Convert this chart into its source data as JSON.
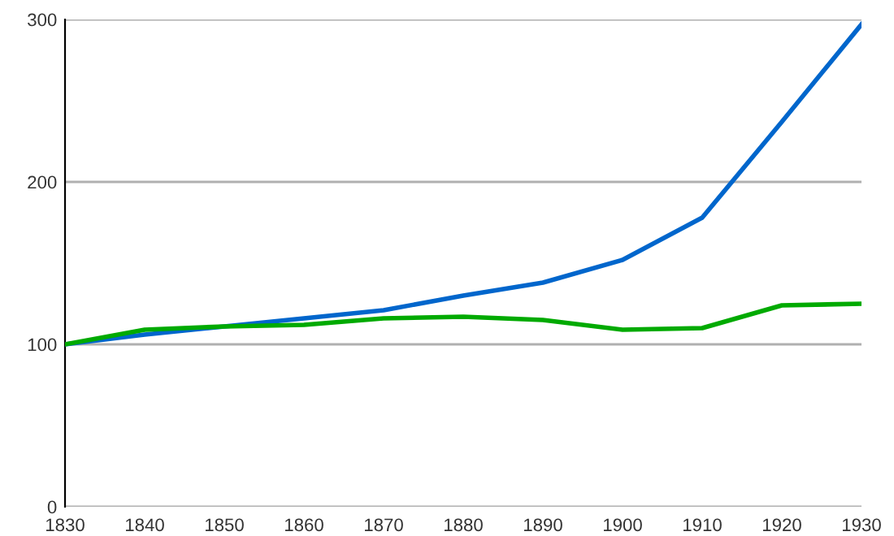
{
  "chart_data": {
    "type": "line",
    "x": [
      1830,
      1840,
      1850,
      1860,
      1870,
      1880,
      1890,
      1900,
      1910,
      1920,
      1930
    ],
    "series": [
      {
        "color": "#0066cc",
        "values": [
          100,
          106,
          111,
          116,
          121,
          130,
          138,
          152,
          178,
          237,
          297
        ]
      },
      {
        "color": "#00aa00",
        "values": [
          100,
          109,
          111,
          112,
          116,
          117,
          115,
          109,
          110,
          124,
          125
        ]
      }
    ],
    "xlim": [
      1830,
      1930
    ],
    "xticks": [
      1830,
      1840,
      1850,
      1860,
      1870,
      1880,
      1890,
      1900,
      1910,
      1920,
      1930
    ],
    "ylim": [
      0,
      300
    ],
    "yticks": [
      0,
      100,
      200,
      300
    ],
    "grid": "y",
    "legend": false,
    "marker": "none",
    "line_style": "solid"
  }
}
